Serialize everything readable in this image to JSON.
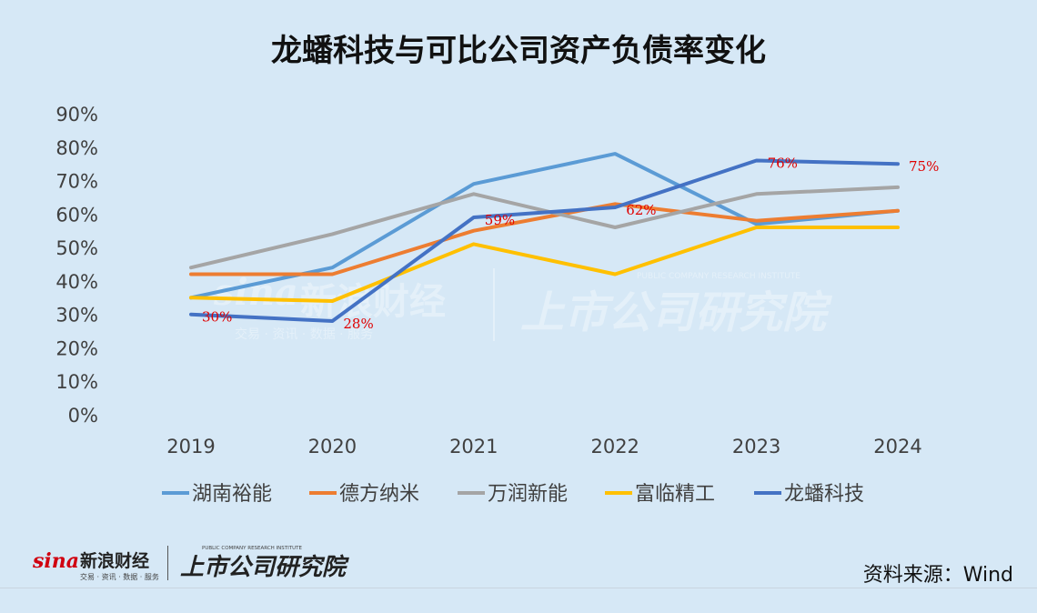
{
  "title": "龙蟠科技与可比公司资产负债率变化",
  "source": "资料来源：Wind",
  "watermark": {
    "brand_cn": "新浪财经",
    "brand_sub": "交易 · 资讯 · 数据 · 服务",
    "institute_cn": "上市公司研究院",
    "institute_en": "PUBLIC COMPANY RESEARCH INSTITUTE",
    "sina_logo": "sina"
  },
  "chart_data": {
    "type": "line",
    "title": "龙蟠科技与可比公司资产负债率变化",
    "x": [
      "2019",
      "2020",
      "2021",
      "2022",
      "2023",
      "2024"
    ],
    "ylim": [
      0,
      90
    ],
    "yticks": [
      "0%",
      "10%",
      "20%",
      "30%",
      "40%",
      "50%",
      "60%",
      "70%",
      "80%",
      "90%"
    ],
    "grid": false,
    "legend_position": "bottom",
    "series": [
      {
        "name": "湖南裕能",
        "color": "#5b9bd5",
        "values": [
          35,
          44,
          69,
          78,
          57,
          61
        ]
      },
      {
        "name": "德方纳米",
        "color": "#ed7d31",
        "values": [
          42,
          42,
          55,
          63,
          58,
          61
        ]
      },
      {
        "name": "万润新能",
        "color": "#a5a5a5",
        "values": [
          44,
          54,
          66,
          56,
          66,
          68
        ]
      },
      {
        "name": "富临精工",
        "color": "#ffc000",
        "values": [
          35,
          34,
          51,
          42,
          56,
          56
        ]
      },
      {
        "name": "龙蟠科技",
        "color": "#4472c4",
        "values": [
          30,
          28,
          59,
          62,
          76,
          75
        ],
        "data_labels": [
          "30%",
          "28%",
          "59%",
          "62%",
          "76%",
          "75%"
        ]
      }
    ],
    "data_label_color": "#e00000"
  }
}
